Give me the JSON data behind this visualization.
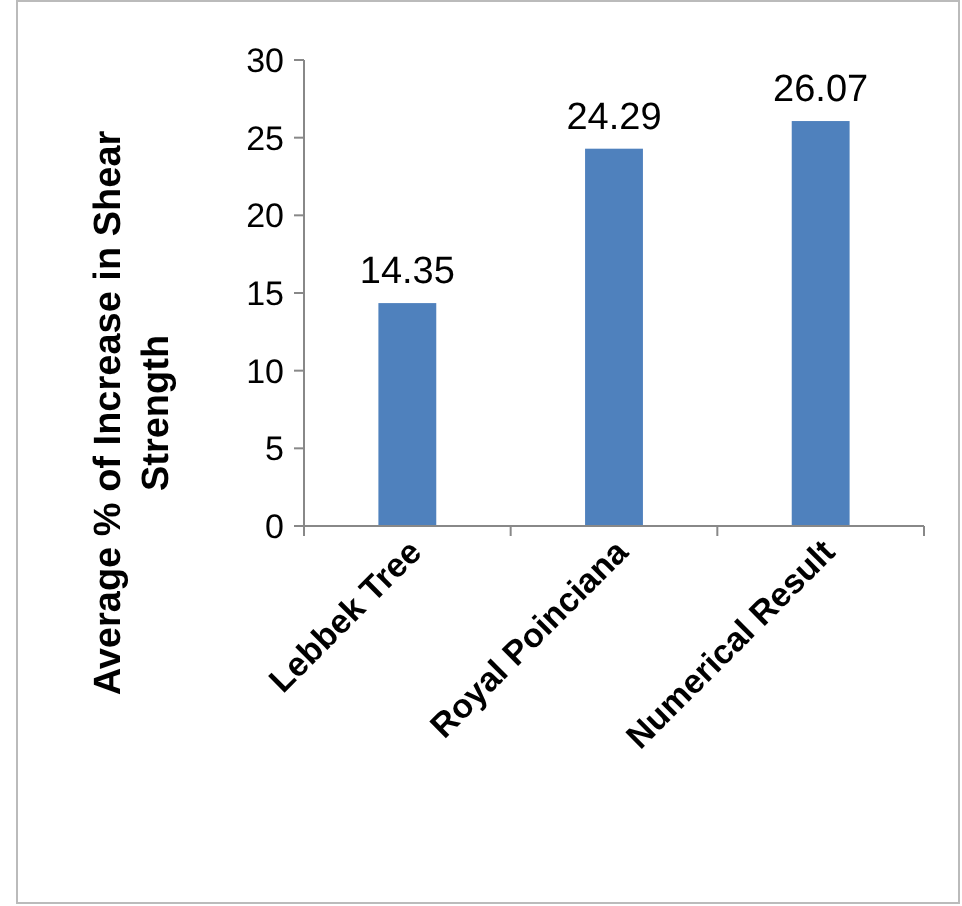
{
  "chart_data": {
    "type": "bar",
    "ylabel": "Average % of Increase in Shear Strength",
    "categories": [
      "Lebbek Tree",
      "Royal Poinciana",
      "Numerical Result"
    ],
    "values": [
      14.35,
      24.29,
      26.07
    ],
    "color": "#4f81bd",
    "ylim": [
      0,
      30
    ],
    "yticks": [
      0,
      5,
      10,
      15,
      20,
      25,
      30
    ],
    "data_labels": true
  }
}
